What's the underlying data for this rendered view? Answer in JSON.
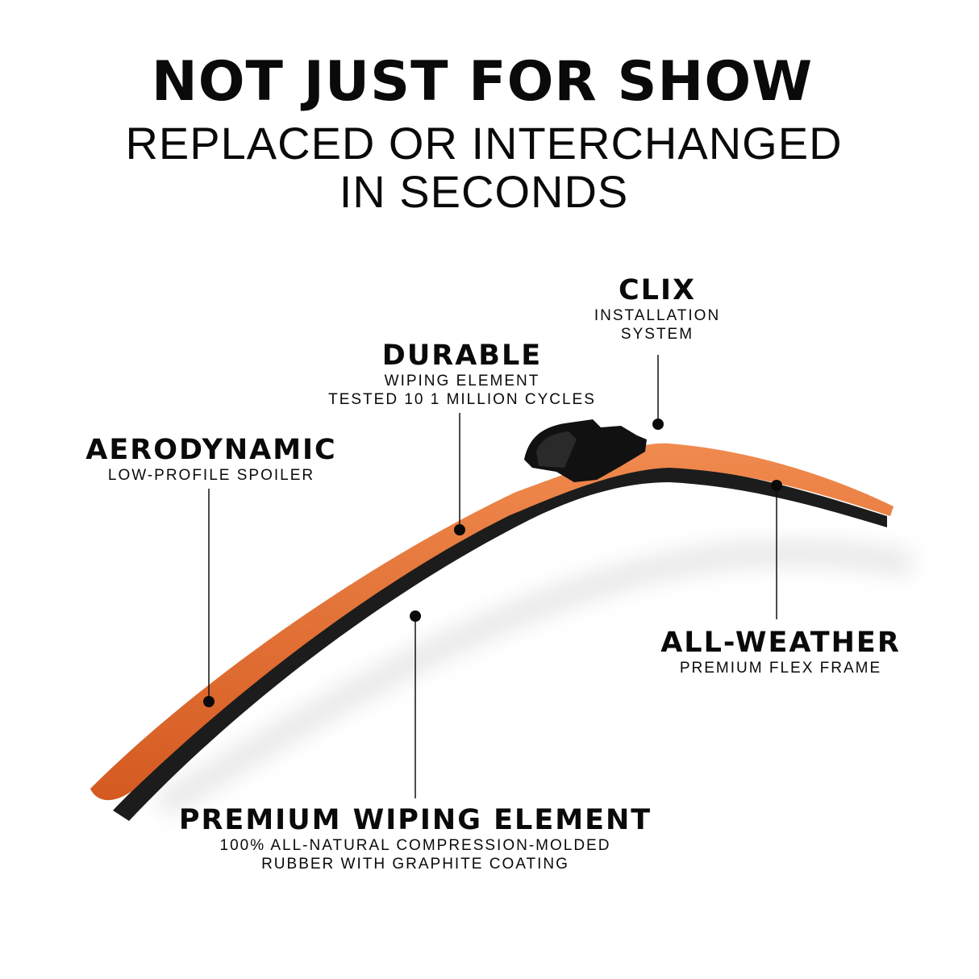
{
  "headline": {
    "title": "NOT JUST FOR SHOW",
    "subtitle_line1": "REPLACED OR INTERCHANGED",
    "subtitle_line2": "IN SECONDS"
  },
  "callouts": {
    "clix": {
      "title": "CLIX",
      "line1": "INSTALLATION",
      "line2": "SYSTEM"
    },
    "durable": {
      "title": "DURABLE",
      "line1": "WIPING ELEMENT",
      "line2": "TESTED 10 1 MILLION CYCLES"
    },
    "aerodynamic": {
      "title": "AERODYNAMIC",
      "line1": "LOW-PROFILE SPOILER"
    },
    "all_weather": {
      "title": "ALL-WEATHER",
      "line1": "PREMIUM FLEX FRAME"
    },
    "premium": {
      "title": "PREMIUM WIPING ELEMENT",
      "line1": "100% ALL-NATURAL COMPRESSION-MOLDED",
      "line2": "RUBBER WITH GRAPHITE COATING"
    }
  },
  "colors": {
    "frame": "#e2692c",
    "rubber": "#1a1a1a",
    "text": "#0a0a0a"
  }
}
